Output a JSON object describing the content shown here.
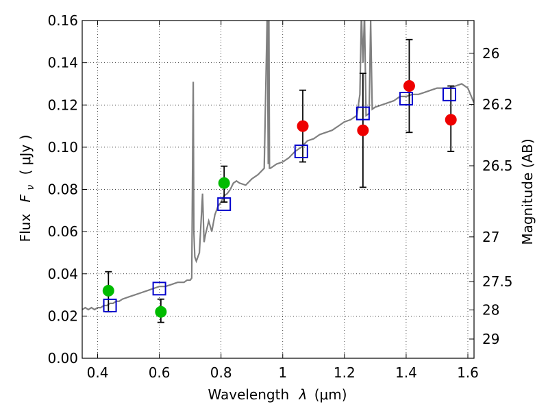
{
  "chart_data": {
    "type": "scatter",
    "xlabel_prefix": "Wavelength",
    "xlabel_symbol": "λ",
    "xlabel_units": "(μm)",
    "ylabel_prefix": "Flux",
    "ylabel_symbol": "F",
    "ylabel_sub": "ν",
    "ylabel_units": "( μJy )",
    "y2label": "Magnitude (AB)",
    "xlim": [
      0.35,
      1.62
    ],
    "ylim": [
      0.0,
      0.16
    ],
    "grid": true,
    "x_ticks": [
      {
        "v": 0.4,
        "label": "0.4"
      },
      {
        "v": 0.6,
        "label": "0.6"
      },
      {
        "v": 0.8,
        "label": "0.8"
      },
      {
        "v": 1.0,
        "label": "1"
      },
      {
        "v": 1.2,
        "label": "1.2"
      },
      {
        "v": 1.4,
        "label": "1.4"
      },
      {
        "v": 1.6,
        "label": "1.6"
      }
    ],
    "y_ticks": [
      {
        "v": 0.0,
        "label": "0.00"
      },
      {
        "v": 0.02,
        "label": "0.02"
      },
      {
        "v": 0.04,
        "label": "0.04"
      },
      {
        "v": 0.06,
        "label": "0.06"
      },
      {
        "v": 0.08,
        "label": "0.08"
      },
      {
        "v": 0.1,
        "label": "0.10"
      },
      {
        "v": 0.12,
        "label": "0.12"
      },
      {
        "v": 0.14,
        "label": "0.14"
      },
      {
        "v": 0.16,
        "label": "0.16"
      }
    ],
    "y2_ticks": [
      {
        "flux": 0.1445,
        "label": "26"
      },
      {
        "flux": 0.1202,
        "label": "26.2"
      },
      {
        "flux": 0.0912,
        "label": "26.5"
      },
      {
        "flux": 0.0575,
        "label": "27"
      },
      {
        "flux": 0.0363,
        "label": "27.5"
      },
      {
        "flux": 0.0229,
        "label": "28"
      },
      {
        "flux": 0.0091,
        "label": "29"
      }
    ],
    "series": [
      {
        "kind": "line",
        "color": "#808080",
        "x": [
          0.35,
          0.36,
          0.37,
          0.38,
          0.39,
          0.4,
          0.41,
          0.42,
          0.43,
          0.44,
          0.45,
          0.46,
          0.47,
          0.48,
          0.5,
          0.52,
          0.54,
          0.56,
          0.58,
          0.6,
          0.62,
          0.64,
          0.66,
          0.68,
          0.69,
          0.7,
          0.705,
          0.71,
          0.712,
          0.715,
          0.72,
          0.73,
          0.74,
          0.745,
          0.75,
          0.76,
          0.77,
          0.78,
          0.79,
          0.8,
          0.81,
          0.82,
          0.83,
          0.84,
          0.85,
          0.86,
          0.88,
          0.9,
          0.92,
          0.94,
          0.95,
          0.953,
          0.955,
          0.957,
          0.96,
          0.97,
          0.98,
          1.0,
          1.02,
          1.04,
          1.06,
          1.08,
          1.1,
          1.12,
          1.14,
          1.16,
          1.18,
          1.2,
          1.22,
          1.24,
          1.25,
          1.255,
          1.26,
          1.265,
          1.27,
          1.28,
          1.285,
          1.29,
          1.3,
          1.32,
          1.34,
          1.36,
          1.38,
          1.4,
          1.42,
          1.44,
          1.46,
          1.48,
          1.5,
          1.52,
          1.54,
          1.56,
          1.58,
          1.6,
          1.62
        ],
        "y": [
          0.023,
          0.024,
          0.023,
          0.024,
          0.023,
          0.024,
          0.024,
          0.025,
          0.025,
          0.026,
          0.026,
          0.027,
          0.027,
          0.028,
          0.029,
          0.03,
          0.031,
          0.032,
          0.033,
          0.034,
          0.034,
          0.035,
          0.036,
          0.036,
          0.037,
          0.037,
          0.038,
          0.131,
          0.06,
          0.048,
          0.046,
          0.05,
          0.078,
          0.055,
          0.059,
          0.065,
          0.06,
          0.068,
          0.072,
          0.074,
          0.077,
          0.078,
          0.08,
          0.083,
          0.084,
          0.083,
          0.082,
          0.085,
          0.087,
          0.09,
          0.165,
          0.092,
          0.165,
          0.09,
          0.09,
          0.091,
          0.092,
          0.093,
          0.095,
          0.098,
          0.1,
          0.103,
          0.104,
          0.106,
          0.107,
          0.108,
          0.11,
          0.112,
          0.113,
          0.115,
          0.125,
          0.163,
          0.14,
          0.163,
          0.115,
          0.116,
          0.16,
          0.118,
          0.119,
          0.12,
          0.121,
          0.122,
          0.124,
          0.124,
          0.125,
          0.125,
          0.126,
          0.127,
          0.128,
          0.128,
          0.128,
          0.129,
          0.13,
          0.128,
          0.121
        ]
      },
      {
        "kind": "squares",
        "color": "#0000cc",
        "x": [
          0.44,
          0.6,
          0.81,
          1.06,
          1.26,
          1.4,
          1.54
        ],
        "y": [
          0.025,
          0.033,
          0.073,
          0.098,
          0.116,
          0.123,
          0.125
        ]
      },
      {
        "kind": "points",
        "color": "#00bb00",
        "x": [
          0.435,
          0.605,
          0.81
        ],
        "y": [
          0.032,
          0.022,
          0.083
        ],
        "yerr_low": [
          0.022,
          0.017,
          0.074
        ],
        "yerr_high": [
          0.041,
          0.028,
          0.091
        ]
      },
      {
        "kind": "points",
        "color": "#ee0000",
        "x": [
          1.065,
          1.26,
          1.41,
          1.545
        ],
        "y": [
          0.11,
          0.108,
          0.129,
          0.113
        ],
        "yerr_low": [
          0.093,
          0.081,
          0.107,
          0.098
        ],
        "yerr_high": [
          0.127,
          0.135,
          0.151,
          0.129
        ]
      }
    ]
  }
}
